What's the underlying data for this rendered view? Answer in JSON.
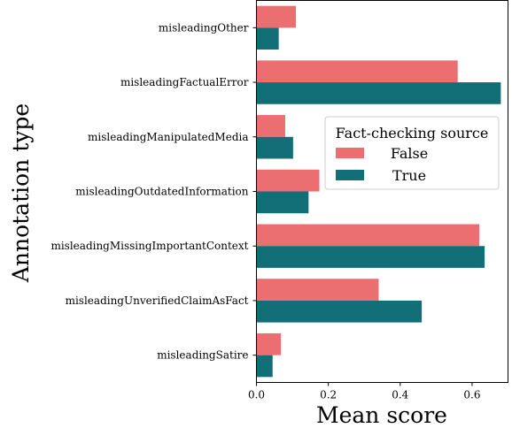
{
  "chart_data": {
    "type": "bar",
    "orientation": "horizontal",
    "categories": [
      "misleadingOther",
      "misleadingFactualError",
      "misleadingManipulatedMedia",
      "misleadingOutdatedInformation",
      "misleadingMissingImportantContext",
      "misleadingUnverifiedClaimAsFact",
      "misleadingSatire"
    ],
    "series": [
      {
        "name": "False",
        "color": "#eb6f71",
        "values": [
          0.11,
          0.56,
          0.08,
          0.175,
          0.62,
          0.34,
          0.068
        ]
      },
      {
        "name": "True",
        "color": "#126e77",
        "values": [
          0.062,
          0.68,
          0.102,
          0.145,
          0.635,
          0.46,
          0.045
        ]
      }
    ],
    "xlabel": "Mean score",
    "ylabel": "Annotation type",
    "xlim": [
      0,
      0.7
    ],
    "xticks": [
      {
        "value": 0.0,
        "label": "0.0"
      },
      {
        "value": 0.2,
        "label": "0.2"
      },
      {
        "value": 0.4,
        "label": "0.4"
      },
      {
        "value": 0.6,
        "label": "0.6"
      }
    ],
    "grid": false,
    "legend": {
      "title": "Fact-checking source",
      "placement": "center-right",
      "entries": [
        "False",
        "True"
      ]
    }
  }
}
